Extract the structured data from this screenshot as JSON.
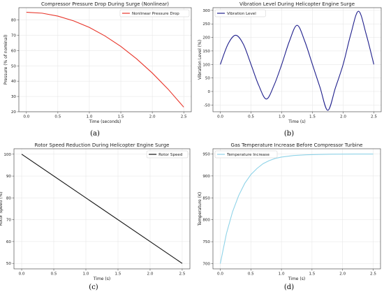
{
  "chart_data": [
    {
      "panel_label": "(a)",
      "type": "line",
      "title": "Compressor Pressure Drop During Surge (Nonlinear)",
      "xlabel": "Time (seconds)",
      "ylabel": "Pressure (% of nominal)",
      "xlim": [
        -0.12,
        2.62
      ],
      "ylim": [
        20,
        88
      ],
      "xticks": [
        0.0,
        0.5,
        1.0,
        1.5,
        2.0,
        2.5
      ],
      "yticks": [
        20,
        30,
        40,
        50,
        60,
        70,
        80
      ],
      "grid": true,
      "legend_position": "top-right",
      "series": [
        {
          "name": "Nonlinear Pressure Drop",
          "color": "#e8352a",
          "x": [
            0.0,
            0.25,
            0.5,
            0.75,
            1.0,
            1.25,
            1.5,
            1.75,
            2.0,
            2.25,
            2.5
          ],
          "y": [
            85.0,
            84.4,
            82.5,
            79.4,
            75.1,
            69.5,
            62.7,
            54.6,
            45.3,
            34.8,
            23.0
          ]
        }
      ]
    },
    {
      "panel_label": "(b)",
      "type": "line",
      "title": "Vibration Level During Helicopter Engine Surge",
      "xlabel": "Time (s)",
      "ylabel": "Vibration Level (%)",
      "xlim": [
        -0.12,
        2.62
      ],
      "ylim": [
        -75,
        310
      ],
      "xticks": [
        0.0,
        0.5,
        1.0,
        1.5,
        2.0,
        2.5
      ],
      "yticks": [
        -50,
        0,
        50,
        100,
        150,
        200,
        250,
        300
      ],
      "grid": true,
      "legend_position": "top-left",
      "series": [
        {
          "name": "Vibration Level",
          "color": "#1f1f8c",
          "x": [
            0.0,
            0.125,
            0.25,
            0.375,
            0.5,
            0.625,
            0.75,
            0.875,
            1.0,
            1.125,
            1.25,
            1.375,
            1.5,
            1.625,
            1.75,
            1.875,
            2.0,
            2.125,
            2.25,
            2.375,
            2.5
          ],
          "y": [
            100,
            175,
            208,
            175,
            100,
            23,
            -28,
            23,
            100,
            186,
            245,
            186,
            100,
            14,
            -70,
            14,
            100,
            212,
            297,
            212,
            100
          ]
        }
      ]
    },
    {
      "panel_label": "(c)",
      "type": "line",
      "title": "Rotor Speed Reduction During Helicopter Engine Surge",
      "xlabel": "Time (s)",
      "ylabel": "Rotor Speed (%)",
      "xlim": [
        -0.12,
        2.62
      ],
      "ylim": [
        47.5,
        102.5
      ],
      "xticks": [
        0.0,
        0.5,
        1.0,
        1.5,
        2.0,
        2.5
      ],
      "yticks": [
        50,
        60,
        70,
        80,
        90,
        100
      ],
      "grid": true,
      "legend_position": "top-right",
      "series": [
        {
          "name": "Rotor Speed",
          "color": "#111111",
          "x": [
            0.0,
            2.5
          ],
          "y": [
            100,
            50
          ]
        }
      ]
    },
    {
      "panel_label": "(d)",
      "type": "line",
      "title": "Gas Temperature Increase Before Compressor Turbine",
      "xlabel": "Time (s)",
      "ylabel": "Temperature (K)",
      "xlim": [
        -0.12,
        2.62
      ],
      "ylim": [
        688,
        962
      ],
      "xticks": [
        0.0,
        0.5,
        1.0,
        1.5,
        2.0,
        2.5
      ],
      "yticks": [
        700,
        750,
        800,
        850,
        900,
        950
      ],
      "grid": true,
      "legend_position": "top-left",
      "series": [
        {
          "name": "Temperature Increase",
          "color": "#8fd3e8",
          "x": [
            0.0,
            0.1,
            0.2,
            0.3,
            0.4,
            0.5,
            0.6,
            0.7,
            0.8,
            0.9,
            1.0,
            1.2,
            1.4,
            1.6,
            1.8,
            2.0,
            2.25,
            2.5
          ],
          "y": [
            700,
            768,
            818,
            855,
            883,
            903,
            917,
            928,
            935,
            940,
            943,
            946.5,
            948.2,
            949.0,
            949.5,
            949.8,
            949.9,
            950
          ]
        }
      ]
    }
  ]
}
